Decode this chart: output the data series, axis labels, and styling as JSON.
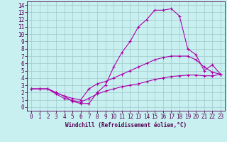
{
  "xlabel": "Windchill (Refroidissement éolien,°C)",
  "background_color": "#c8f0f0",
  "grid_color": "#a0c8c8",
  "line_color": "#aa00aa",
  "spine_color": "#550055",
  "xlim": [
    -0.5,
    23.5
  ],
  "ylim": [
    -0.5,
    14.5
  ],
  "xticks": [
    0,
    1,
    2,
    3,
    4,
    5,
    6,
    7,
    8,
    9,
    10,
    11,
    12,
    13,
    14,
    15,
    16,
    17,
    18,
    19,
    20,
    21,
    22,
    23
  ],
  "yticks": [
    0,
    1,
    2,
    3,
    4,
    5,
    6,
    7,
    8,
    9,
    10,
    11,
    12,
    13,
    14
  ],
  "line1_x": [
    0,
    1,
    2,
    3,
    4,
    5,
    6,
    7,
    8,
    9,
    10,
    11,
    12,
    13,
    14,
    15,
    16,
    17,
    18,
    19,
    20,
    21,
    22,
    23
  ],
  "line1_y": [
    2.5,
    2.5,
    2.5,
    2.0,
    1.5,
    0.8,
    0.5,
    0.5,
    2.0,
    3.0,
    5.5,
    7.5,
    9.0,
    11.0,
    12.0,
    13.3,
    13.3,
    13.5,
    12.5,
    8.0,
    7.2,
    5.0,
    5.8,
    4.5
  ],
  "line2_x": [
    0,
    1,
    2,
    3,
    4,
    5,
    6,
    7,
    8,
    9,
    10,
    11,
    12,
    13,
    14,
    15,
    16,
    17,
    18,
    19,
    20,
    21,
    22,
    23
  ],
  "line2_y": [
    2.5,
    2.5,
    2.5,
    2.0,
    1.5,
    1.2,
    1.0,
    2.5,
    3.2,
    3.5,
    4.0,
    4.5,
    5.0,
    5.5,
    6.0,
    6.5,
    6.8,
    7.0,
    7.0,
    7.0,
    6.5,
    5.5,
    4.8,
    4.5
  ],
  "line3_x": [
    0,
    1,
    2,
    3,
    4,
    5,
    6,
    7,
    8,
    9,
    10,
    11,
    12,
    13,
    14,
    15,
    16,
    17,
    18,
    19,
    20,
    21,
    22,
    23
  ],
  "line3_y": [
    2.5,
    2.5,
    2.5,
    1.8,
    1.2,
    0.9,
    0.7,
    1.2,
    1.8,
    2.2,
    2.5,
    2.8,
    3.0,
    3.2,
    3.5,
    3.8,
    4.0,
    4.2,
    4.3,
    4.4,
    4.4,
    4.3,
    4.3,
    4.5
  ],
  "tick_fontsize": 5.5,
  "xlabel_fontsize": 5.5,
  "marker_size": 3,
  "line_width": 0.8
}
